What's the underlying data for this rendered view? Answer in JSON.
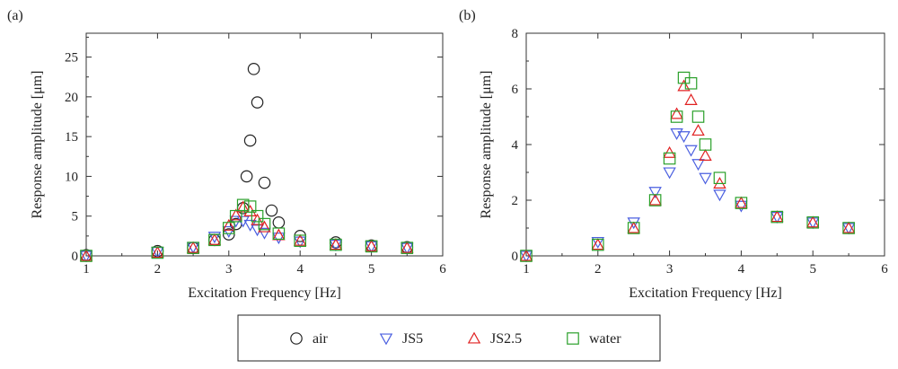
{
  "chart_data": [
    {
      "panel_label": "(a)",
      "type": "scatter",
      "xlabel": "Excitation Frequency [Hz]",
      "ylabel": "Response amplitude [μm]",
      "xlim": [
        1,
        6
      ],
      "ylim": [
        0,
        28
      ],
      "xticks": [
        "1",
        "2",
        "3",
        "4",
        "5",
        "6"
      ],
      "yticks": [
        "0",
        "5",
        "10",
        "15",
        "20",
        "25"
      ],
      "xtick_values": [
        1,
        2,
        3,
        4,
        5,
        6
      ],
      "ytick_values": [
        0,
        5,
        10,
        15,
        20,
        25
      ],
      "series": [
        {
          "name": "air",
          "marker": "circle",
          "color": "#222222",
          "points": [
            [
              1,
              0.1
            ],
            [
              2,
              0.6
            ],
            [
              2.5,
              1.0
            ],
            [
              2.8,
              2.0
            ],
            [
              3.0,
              2.7
            ],
            [
              3.1,
              4.0
            ],
            [
              3.2,
              6.0
            ],
            [
              3.25,
              10.0
            ],
            [
              3.3,
              14.5
            ],
            [
              3.35,
              23.5
            ],
            [
              3.4,
              19.3
            ],
            [
              3.5,
              9.2
            ],
            [
              3.6,
              5.7
            ],
            [
              3.7,
              4.2
            ],
            [
              4.0,
              2.5
            ],
            [
              4.5,
              1.7
            ],
            [
              5.0,
              1.3
            ],
            [
              5.5,
              1.1
            ]
          ]
        },
        {
          "name": "JS5",
          "marker": "triangle-down",
          "color": "#4a5fe0",
          "points": [
            [
              1,
              0.0
            ],
            [
              2,
              0.5
            ],
            [
              2.5,
              1.1
            ],
            [
              2.8,
              2.4
            ],
            [
              3.0,
              3.1
            ],
            [
              3.1,
              4.4
            ],
            [
              3.2,
              4.4
            ],
            [
              3.3,
              3.9
            ],
            [
              3.4,
              3.3
            ],
            [
              3.5,
              2.9
            ],
            [
              3.7,
              2.3
            ],
            [
              4.0,
              1.8
            ],
            [
              4.5,
              1.4
            ],
            [
              5.0,
              1.2
            ],
            [
              5.5,
              1.0
            ]
          ]
        },
        {
          "name": "JS2.5",
          "marker": "triangle-up",
          "color": "#e02020",
          "points": [
            [
              1,
              0.0
            ],
            [
              2,
              0.4
            ],
            [
              2.5,
              1.0
            ],
            [
              2.8,
              2.0
            ],
            [
              3.0,
              3.8
            ],
            [
              3.1,
              5.1
            ],
            [
              3.2,
              6.1
            ],
            [
              3.3,
              5.6
            ],
            [
              3.4,
              4.5
            ],
            [
              3.5,
              3.6
            ],
            [
              3.7,
              2.6
            ],
            [
              4.0,
              1.9
            ],
            [
              4.5,
              1.4
            ],
            [
              5.0,
              1.2
            ],
            [
              5.5,
              1.0
            ]
          ]
        },
        {
          "name": "water",
          "marker": "square",
          "color": "#2aa02a",
          "points": [
            [
              1,
              0.0
            ],
            [
              2,
              0.4
            ],
            [
              2.5,
              1.0
            ],
            [
              2.8,
              2.0
            ],
            [
              3.0,
              3.5
            ],
            [
              3.1,
              5.0
            ],
            [
              3.2,
              6.4
            ],
            [
              3.3,
              6.2
            ],
            [
              3.4,
              5.0
            ],
            [
              3.5,
              4.0
            ],
            [
              3.7,
              2.8
            ],
            [
              4.0,
              1.9
            ],
            [
              4.5,
              1.4
            ],
            [
              5.0,
              1.2
            ],
            [
              5.5,
              1.0
            ]
          ]
        }
      ]
    },
    {
      "panel_label": "(b)",
      "type": "scatter",
      "xlabel": "Excitation Frequency [Hz]",
      "ylabel": "Response amplitude [μm]",
      "xlim": [
        1,
        6
      ],
      "ylim": [
        0,
        8
      ],
      "xticks": [
        "1",
        "2",
        "3",
        "4",
        "5",
        "6"
      ],
      "yticks": [
        "0",
        "2",
        "4",
        "6",
        "8"
      ],
      "xtick_values": [
        1,
        2,
        3,
        4,
        5,
        6
      ],
      "ytick_values": [
        0,
        2,
        4,
        6,
        8
      ],
      "series": [
        {
          "name": "JS5",
          "marker": "triangle-down",
          "color": "#4a5fe0",
          "points": [
            [
              1,
              0.0
            ],
            [
              2,
              0.5
            ],
            [
              2.5,
              1.2
            ],
            [
              2.8,
              2.3
            ],
            [
              3.0,
              3.0
            ],
            [
              3.1,
              4.4
            ],
            [
              3.2,
              4.3
            ],
            [
              3.3,
              3.8
            ],
            [
              3.4,
              3.3
            ],
            [
              3.5,
              2.8
            ],
            [
              3.7,
              2.2
            ],
            [
              4.0,
              1.8
            ],
            [
              4.5,
              1.4
            ],
            [
              5.0,
              1.2
            ],
            [
              5.5,
              1.0
            ]
          ]
        },
        {
          "name": "JS2.5",
          "marker": "triangle-up",
          "color": "#e02020",
          "points": [
            [
              1,
              0.0
            ],
            [
              2,
              0.4
            ],
            [
              2.5,
              1.0
            ],
            [
              2.8,
              2.0
            ],
            [
              3.0,
              3.7
            ],
            [
              3.1,
              5.1
            ],
            [
              3.2,
              6.1
            ],
            [
              3.3,
              5.6
            ],
            [
              3.4,
              4.5
            ],
            [
              3.5,
              3.6
            ],
            [
              3.7,
              2.6
            ],
            [
              4.0,
              1.9
            ],
            [
              4.5,
              1.4
            ],
            [
              5.0,
              1.2
            ],
            [
              5.5,
              1.0
            ]
          ]
        },
        {
          "name": "water",
          "marker": "square",
          "color": "#2aa02a",
          "points": [
            [
              1,
              0.0
            ],
            [
              2,
              0.4
            ],
            [
              2.5,
              1.0
            ],
            [
              2.8,
              2.0
            ],
            [
              3.0,
              3.5
            ],
            [
              3.1,
              5.0
            ],
            [
              3.2,
              6.4
            ],
            [
              3.3,
              6.2
            ],
            [
              3.4,
              5.0
            ],
            [
              3.5,
              4.0
            ],
            [
              3.7,
              2.8
            ],
            [
              4.0,
              1.9
            ],
            [
              4.5,
              1.4
            ],
            [
              5.0,
              1.2
            ],
            [
              5.5,
              1.0
            ]
          ]
        }
      ]
    }
  ],
  "legend": {
    "entries": [
      {
        "label": "air",
        "marker": "circle",
        "color": "#222222"
      },
      {
        "label": "JS5",
        "marker": "triangle-down",
        "color": "#4a5fe0"
      },
      {
        "label": "JS2.5",
        "marker": "triangle-up",
        "color": "#e02020"
      },
      {
        "label": "water",
        "marker": "square",
        "color": "#2aa02a"
      }
    ]
  }
}
